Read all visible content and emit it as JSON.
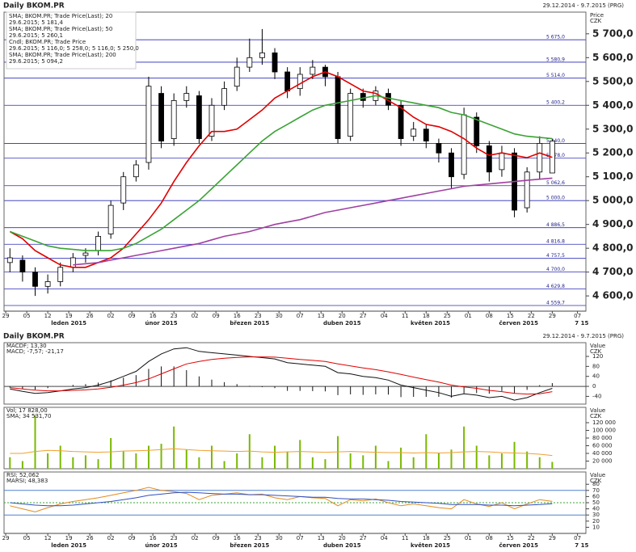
{
  "chart_data": [
    {
      "type": "candlestick",
      "title": "Daily BKOM.PR",
      "subtitle": "29.12.2014 - 9.7.2015 (PRG)",
      "y_label": "Price",
      "unit": "CZK",
      "xlim": [
        -0.4,
        138
      ],
      "ylim": [
        4536,
        5791
      ],
      "xticks": [
        {
          "value": 0,
          "label": "29"
        },
        {
          "value": 5,
          "label": "05"
        },
        {
          "value": 10,
          "label": "12"
        },
        {
          "value": 15,
          "label": "19"
        },
        {
          "value": 20,
          "label": "26"
        },
        {
          "value": 25,
          "label": "02"
        },
        {
          "value": 30,
          "label": "09"
        },
        {
          "value": 35,
          "label": "16"
        },
        {
          "value": 40,
          "label": "23"
        },
        {
          "value": 45,
          "label": "02"
        },
        {
          "value": 50,
          "label": "09"
        },
        {
          "value": 55,
          "label": "16"
        },
        {
          "value": 60,
          "label": "23"
        },
        {
          "value": 65,
          "label": "30"
        },
        {
          "value": 70,
          "label": "07"
        },
        {
          "value": 75,
          "label": "13"
        },
        {
          "value": 80,
          "label": "20"
        },
        {
          "value": 85,
          "label": "27"
        },
        {
          "value": 90,
          "label": "04"
        },
        {
          "value": 95,
          "label": "11"
        },
        {
          "value": 100,
          "label": "18"
        },
        {
          "value": 105,
          "label": "25"
        },
        {
          "value": 110,
          "label": "01"
        },
        {
          "value": 115,
          "label": "08"
        },
        {
          "value": 120,
          "label": "15"
        },
        {
          "value": 125,
          "label": "22"
        },
        {
          "value": 130,
          "label": "29"
        },
        {
          "value": 136,
          "label": "07"
        }
      ],
      "months": [
        {
          "value": 15,
          "label": "leden 2015"
        },
        {
          "value": 37,
          "label": "únor 2015"
        },
        {
          "value": 58,
          "label": "březen 2015"
        },
        {
          "value": 80,
          "label": "duben 2015"
        },
        {
          "value": 101,
          "label": "květen 2015"
        },
        {
          "value": 122,
          "label": "červen 2015"
        },
        {
          "value": 137,
          "label": "7 15"
        }
      ],
      "yticks": [
        {
          "value": 4600,
          "label": "4 600,0"
        },
        {
          "value": 4700,
          "label": "4 700,0"
        },
        {
          "value": 4800,
          "label": "4 800,0"
        },
        {
          "value": 4900,
          "label": "4 900,0"
        },
        {
          "value": 5000,
          "label": "5 000,0"
        },
        {
          "value": 5100,
          "label": "5 100,0"
        },
        {
          "value": 5200,
          "label": "5 200,0"
        },
        {
          "value": 5300,
          "label": "5 300,0"
        },
        {
          "value": 5400,
          "label": "5 400,0"
        },
        {
          "value": 5500,
          "label": "5 500,0"
        },
        {
          "value": 5600,
          "label": "5 600,0"
        },
        {
          "value": 5700,
          "label": "5 700,0"
        }
      ],
      "levels": [
        {
          "value": 5675,
          "label": "5 675,0"
        },
        {
          "value": 5580.9,
          "label": "5 580,9"
        },
        {
          "value": 5514,
          "label": "5 514,0"
        },
        {
          "value": 5400.2,
          "label": "5 400,2"
        },
        {
          "value": 5240,
          "label": "5 240,0"
        },
        {
          "value": 5178,
          "label": "5 178,0"
        },
        {
          "value": 5062.6,
          "label": "5 062,6"
        },
        {
          "value": 5000,
          "label": "5 000,0"
        },
        {
          "value": 4886.5,
          "label": "4 886,5"
        },
        {
          "value": 4816.8,
          "label": "4 816,8"
        },
        {
          "value": 4757.5,
          "label": "4 757,5"
        },
        {
          "value": 4700,
          "label": "4 700,0"
        },
        {
          "value": 4629.8,
          "label": "4 629,8"
        },
        {
          "value": 4559.7,
          "label": "4 559,7"
        }
      ],
      "level_color": "#2a2ab8",
      "candle_legend": [
        "Cndl; BKOM.PR; Trade Price",
        "29.6.2015; 5 116,0; 5 258,0; 5 116,0; 5 250,0"
      ],
      "x": [
        1,
        4,
        7,
        10,
        13,
        16,
        19,
        22,
        25,
        28,
        31,
        34,
        37,
        40,
        43,
        46,
        49,
        52,
        55,
        58,
        61,
        64,
        67,
        70,
        73,
        76,
        79,
        82,
        85,
        88,
        91,
        94,
        97,
        100,
        103,
        106,
        109,
        112,
        115,
        118,
        121,
        124,
        127,
        130
      ],
      "open": [
        4740,
        4750,
        4700,
        4640,
        4660,
        4720,
        4770,
        4790,
        4860,
        4990,
        5100,
        5160,
        5450,
        5260,
        5420,
        5440,
        5270,
        5400,
        5480,
        5560,
        5600,
        5620,
        5540,
        5470,
        5530,
        5560,
        5520,
        5270,
        5450,
        5420,
        5450,
        5400,
        5270,
        5300,
        5240,
        5200,
        5110,
        5350,
        5230,
        5130,
        5200,
        4970,
        5120,
        5116
      ],
      "high": [
        4800,
        4770,
        4720,
        4690,
        4740,
        4780,
        4800,
        4870,
        5000,
        5120,
        5170,
        5520,
        5480,
        5450,
        5480,
        5460,
        5430,
        5500,
        5600,
        5680,
        5720,
        5640,
        5560,
        5560,
        5590,
        5570,
        5540,
        5470,
        5470,
        5480,
        5470,
        5420,
        5330,
        5320,
        5260,
        5220,
        5390,
        5370,
        5250,
        5230,
        5220,
        5140,
        5270,
        5258
      ],
      "low": [
        4700,
        4660,
        4600,
        4610,
        4640,
        4700,
        4740,
        4770,
        4840,
        4960,
        5080,
        5130,
        5220,
        5230,
        5390,
        5240,
        5250,
        5380,
        5460,
        5540,
        5570,
        5510,
        5430,
        5440,
        5510,
        5480,
        5240,
        5250,
        5390,
        5400,
        5380,
        5230,
        5250,
        5220,
        5160,
        5050,
        5090,
        5200,
        5080,
        5100,
        4930,
        4950,
        5090,
        5116
      ],
      "close": [
        4760,
        4700,
        4640,
        4660,
        4720,
        4760,
        4780,
        4850,
        4980,
        5100,
        5150,
        5480,
        5250,
        5420,
        5450,
        5260,
        5400,
        5470,
        5560,
        5600,
        5620,
        5540,
        5460,
        5530,
        5560,
        5520,
        5260,
        5450,
        5420,
        5460,
        5400,
        5260,
        5300,
        5250,
        5200,
        5100,
        5360,
        5230,
        5120,
        5200,
        4960,
        5120,
        5240,
        5250
      ],
      "series": [
        {
          "name": "SMA; BKOM.PR; Trade Price(Last); 20",
          "last_label": "29.6.2015; 5 181,4",
          "color": "#e00000",
          "values": [
            4870,
            4840,
            4790,
            4760,
            4730,
            4720,
            4720,
            4740,
            4760,
            4800,
            4860,
            4920,
            4990,
            5080,
            5160,
            5230,
            5290,
            5290,
            5300,
            5340,
            5380,
            5430,
            5460,
            5490,
            5520,
            5540,
            5520,
            5490,
            5460,
            5450,
            5420,
            5390,
            5350,
            5320,
            5310,
            5290,
            5260,
            5220,
            5190,
            5200,
            5190,
            5180,
            5200,
            5181.4
          ]
        },
        {
          "name": "SMA; BKOM.PR; Trade Price(Last); 50",
          "last_label": "29.6.2015; 5 260,1",
          "color": "#3aa335",
          "values": [
            4870,
            4850,
            4830,
            4810,
            4800,
            4795,
            4790,
            4790,
            4790,
            4800,
            4820,
            4850,
            4880,
            4920,
            4960,
            5000,
            5050,
            5100,
            5150,
            5200,
            5250,
            5290,
            5320,
            5350,
            5380,
            5400,
            5410,
            5420,
            5430,
            5440,
            5430,
            5420,
            5410,
            5400,
            5390,
            5370,
            5360,
            5340,
            5320,
            5300,
            5280,
            5270,
            5265,
            5260.1
          ]
        },
        {
          "name": "SMA; BKOM.PR; Trade Price(Last); 200",
          "last_label": "29.6.2015; 5 094,2",
          "color": "#a040a0",
          "values": [
            null,
            null,
            null,
            null,
            null,
            4730,
            4735,
            4740,
            4750,
            4760,
            4770,
            4780,
            4790,
            4800,
            4810,
            4820,
            4835,
            4850,
            4860,
            4870,
            4885,
            4900,
            4910,
            4920,
            4935,
            4950,
            4960,
            4970,
            4980,
            4990,
            5000,
            5010,
            5020,
            5030,
            5040,
            5050,
            5060,
            5065,
            5070,
            5075,
            5080,
            5085,
            5090,
            5094.2
          ]
        }
      ]
    },
    {
      "type": "line",
      "y_label": "Value",
      "unit": "CZK",
      "ylim": [
        -71,
        175
      ],
      "yticks": [
        120,
        80,
        40,
        0,
        -40
      ],
      "hlines": [
        0
      ],
      "series": [
        {
          "name": "MACDF; 13,30",
          "color": "#111111",
          "values": [
            -10,
            -20,
            -28,
            -25,
            -18,
            -10,
            -5,
            5,
            20,
            40,
            60,
            100,
            130,
            150,
            155,
            140,
            135,
            130,
            125,
            120,
            115,
            110,
            95,
            90,
            85,
            80,
            55,
            50,
            40,
            35,
            25,
            5,
            -5,
            -15,
            -25,
            -40,
            -30,
            -35,
            -45,
            -40,
            -55,
            -45,
            -25,
            -8
          ]
        },
        {
          "name": "MACD; -7,57; -21,17",
          "color": "#e00000",
          "values": [
            -5,
            -10,
            -15,
            -18,
            -18,
            -16,
            -14,
            -10,
            -4,
            5,
            15,
            30,
            50,
            70,
            90,
            100,
            108,
            113,
            116,
            118,
            118,
            117,
            113,
            108,
            104,
            100,
            90,
            82,
            74,
            67,
            58,
            48,
            37,
            27,
            17,
            5,
            -2,
            -8,
            -16,
            -21,
            -28,
            -31,
            -30,
            -21
          ]
        }
      ],
      "histogram": {
        "color": "#111111",
        "values": [
          -5,
          -10,
          -13,
          -7,
          0,
          6,
          9,
          15,
          24,
          35,
          45,
          70,
          80,
          80,
          65,
          40,
          27,
          17,
          9,
          2,
          -3,
          -7,
          -18,
          -18,
          -19,
          -20,
          -35,
          -32,
          -34,
          -32,
          -33,
          -43,
          -42,
          -42,
          -42,
          -45,
          -28,
          -27,
          -29,
          -19,
          -27,
          -14,
          5,
          13
        ]
      }
    },
    {
      "type": "bar",
      "y_label": "Value",
      "unit": "CZK",
      "ylim": [
        0,
        160000
      ],
      "yticks": [
        {
          "value": 120000,
          "label": "120 000"
        },
        {
          "value": 100000,
          "label": "100 000"
        },
        {
          "value": 80000,
          "label": "80 000"
        },
        {
          "value": 60000,
          "label": "60 000"
        },
        {
          "value": 40000,
          "label": "40 000"
        },
        {
          "value": 20000,
          "label": "20 000"
        }
      ],
      "series": [
        {
          "name": "Vol; 17 828,00",
          "type": "bar",
          "color": "#7ab800",
          "values": [
            30000,
            20000,
            140000,
            40000,
            60000,
            30000,
            35000,
            25000,
            80000,
            45000,
            40000,
            60000,
            65000,
            110000,
            50000,
            30000,
            60000,
            20000,
            40000,
            90000,
            30000,
            60000,
            45000,
            75000,
            30000,
            25000,
            85000,
            40000,
            35000,
            60000,
            20000,
            55000,
            30000,
            90000,
            40000,
            50000,
            110000,
            60000,
            35000,
            40000,
            70000,
            45000,
            30000,
            17828
          ]
        },
        {
          "name": "SMA; 34 531,70",
          "type": "line",
          "color": "#f0a030",
          "values": [
            40000,
            40000,
            45000,
            48000,
            47000,
            45000,
            44000,
            43000,
            44000,
            46000,
            47000,
            48000,
            50000,
            52000,
            50000,
            48000,
            47000,
            46000,
            45000,
            46000,
            44000,
            43000,
            44000,
            45000,
            44000,
            43000,
            44000,
            45000,
            44000,
            43000,
            42000,
            42000,
            41000,
            42000,
            41000,
            42000,
            44000,
            45000,
            44000,
            42000,
            41000,
            40000,
            38000,
            34531.7
          ]
        }
      ]
    },
    {
      "type": "line",
      "y_label": "Value",
      "unit": "CZK",
      "ylim": [
        0,
        100
      ],
      "yticks": [
        80,
        70,
        60,
        50,
        40,
        30,
        20,
        10
      ],
      "hlines": [
        70,
        50,
        30
      ],
      "series": [
        {
          "name": "RSI; 52,062",
          "color": "#e08a20",
          "values": [
            45,
            40,
            35,
            42,
            48,
            52,
            55,
            58,
            62,
            66,
            70,
            75,
            70,
            68,
            65,
            55,
            62,
            64,
            66,
            63,
            64,
            58,
            55,
            60,
            58,
            57,
            45,
            55,
            53,
            56,
            50,
            45,
            48,
            45,
            42,
            40,
            55,
            48,
            44,
            50,
            40,
            48,
            55,
            52.062
          ]
        },
        {
          "name": "MARSI; 48,383",
          "color": "#3050c0",
          "values": [
            50,
            48,
            46,
            45,
            45,
            46,
            48,
            50,
            52,
            55,
            58,
            62,
            64,
            66,
            67,
            66,
            65,
            64,
            64,
            63,
            63,
            62,
            61,
            60,
            59,
            59,
            57,
            56,
            56,
            55,
            54,
            52,
            51,
            50,
            49,
            47,
            47,
            47,
            46,
            46,
            45,
            46,
            47,
            48.383
          ]
        }
      ]
    }
  ]
}
